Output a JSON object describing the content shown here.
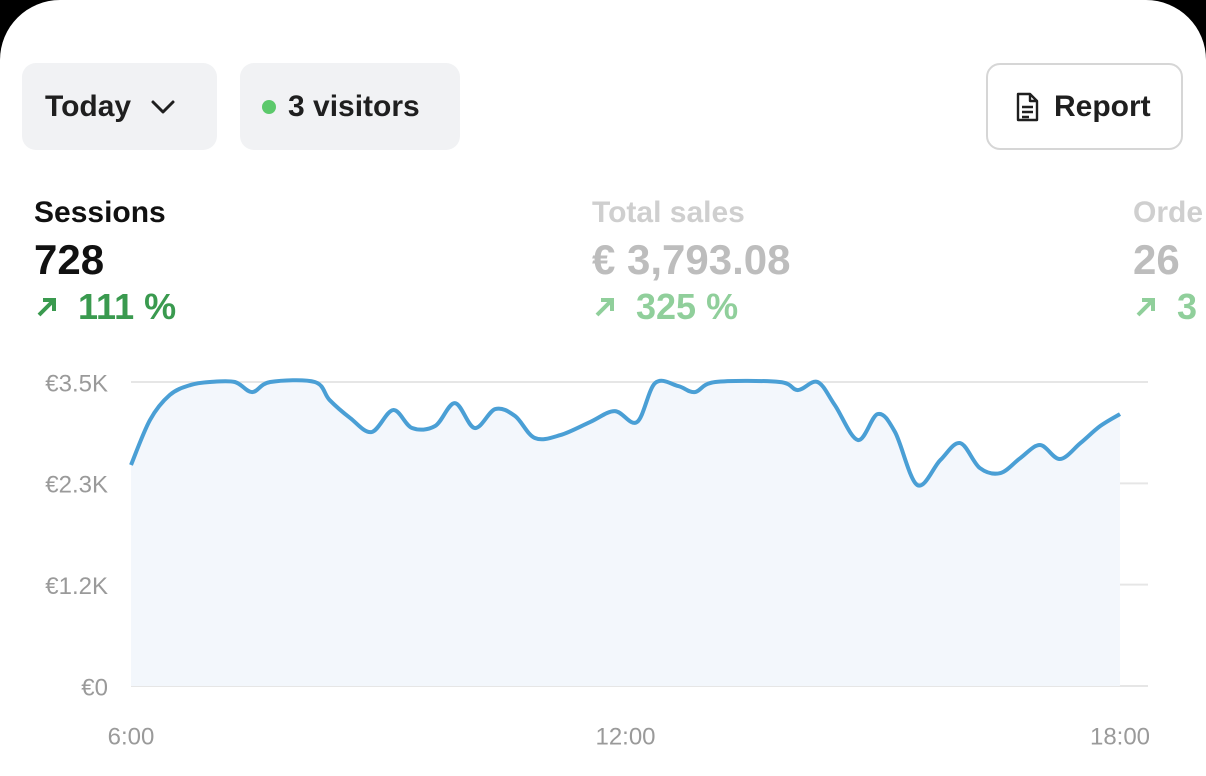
{
  "buttons": {
    "period": "Today",
    "visitors": "3 visitors",
    "report": "Report"
  },
  "metrics": [
    {
      "label": "Sessions",
      "value": "728",
      "change": "111 %"
    },
    {
      "label": "Total sales",
      "value": "€ 3,793.08",
      "change": "325 %"
    },
    {
      "label": "Orde",
      "value": "26",
      "change": "3"
    }
  ],
  "chart_data": {
    "type": "line",
    "color": "#4a9fd5",
    "grid": true,
    "x": [
      6.0,
      6.23,
      6.47,
      6.72,
      6.96,
      7.26,
      7.47,
      7.69,
      8.23,
      8.41,
      8.66,
      8.92,
      9.18,
      9.41,
      9.69,
      9.93,
      10.17,
      10.42,
      10.66,
      10.9,
      11.21,
      11.57,
      11.87,
      12.14,
      12.36,
      12.64,
      12.84,
      13.09,
      13.87,
      14.09,
      14.33,
      14.54,
      14.82,
      15.06,
      15.27,
      15.54,
      15.82,
      16.06,
      16.3,
      16.55,
      16.79,
      17.03,
      17.27,
      17.52,
      17.76,
      18.0
    ],
    "values": [
      2544,
      3062,
      3350,
      3465,
      3500,
      3500,
      3384,
      3500,
      3500,
      3292,
      3085,
      2924,
      3177,
      2970,
      2993,
      3257,
      2970,
      3188,
      3108,
      2855,
      2889,
      3039,
      3165,
      3039,
      3488,
      3453,
      3384,
      3500,
      3500,
      3407,
      3500,
      3234,
      2832,
      3131,
      2924,
      2314,
      2601,
      2797,
      2509,
      2452,
      2624,
      2774,
      2613,
      2797,
      2993,
      3131
    ],
    "xlim": [
      6,
      18
    ],
    "xticks": [
      {
        "value": 6,
        "label": "6:00"
      },
      {
        "value": 12,
        "label": "12:00"
      },
      {
        "value": 18,
        "label": "18:00"
      }
    ],
    "ylim": [
      0,
      3500
    ],
    "yticks": [
      {
        "value": 0,
        "label": "€0"
      },
      {
        "value": 1167,
        "label": "€1.2K"
      },
      {
        "value": 2333,
        "label": "€2.3K"
      },
      {
        "value": 3500,
        "label": "€3.5K"
      }
    ]
  }
}
